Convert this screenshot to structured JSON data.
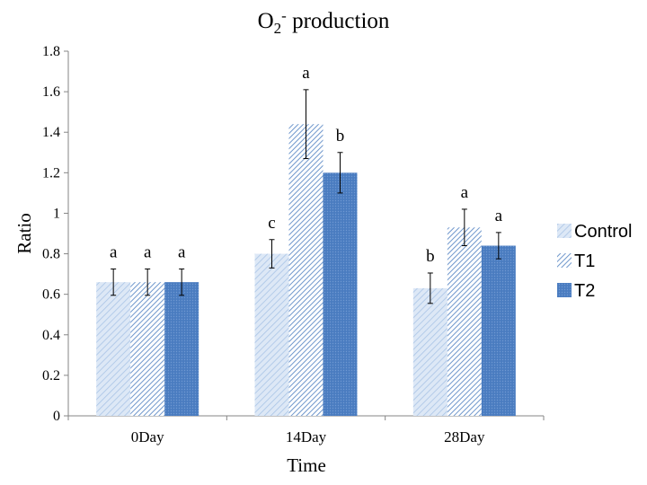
{
  "chart_data": {
    "type": "bar",
    "title": {
      "prefix": "O",
      "subscript": "2",
      "superscript": "-",
      "suffix": " production"
    },
    "xlabel": "Time",
    "ylabel": "Ratio",
    "ylim": [
      0,
      1.8
    ],
    "yticks": [
      "0",
      "0.2",
      "0.4",
      "0.6",
      "0.8",
      "1",
      "1.2",
      "1.4",
      "1.6",
      "1.8"
    ],
    "categories": [
      "0Day",
      "14Day",
      "28Day"
    ],
    "legend_position": "right",
    "grid": false,
    "series": [
      {
        "name": "Control",
        "color": "#c5d9f1",
        "pattern": "light-diagonal",
        "values": [
          0.66,
          0.8,
          0.63
        ],
        "errors": [
          0.065,
          0.07,
          0.075
        ],
        "significance": [
          "a",
          "c",
          "b"
        ]
      },
      {
        "name": "T1",
        "color": "#8db3e2",
        "pattern": "dark-diagonal",
        "values": [
          0.66,
          1.44,
          0.93
        ],
        "errors": [
          0.065,
          0.17,
          0.09
        ],
        "significance": [
          "a",
          "a",
          "a"
        ]
      },
      {
        "name": "T2",
        "color": "#4f81bd",
        "pattern": "dotted-fill",
        "values": [
          0.66,
          1.2,
          0.84
        ],
        "errors": [
          0.065,
          0.1,
          0.065
        ],
        "significance": [
          "a",
          "b",
          "a"
        ]
      }
    ]
  }
}
